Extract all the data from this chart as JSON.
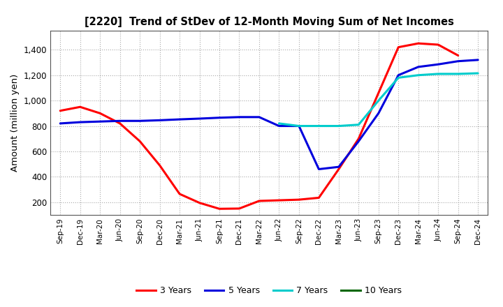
{
  "title": "[2220]  Trend of StDev of 12-Month Moving Sum of Net Incomes",
  "ylabel": "Amount (million yen)",
  "background_color": "#ffffff",
  "plot_bg_color": "#ffffff",
  "grid_color": "#aaaaaa",
  "x_labels": [
    "Sep-19",
    "Dec-19",
    "Mar-20",
    "Jun-20",
    "Sep-20",
    "Dec-20",
    "Mar-21",
    "Jun-21",
    "Sep-21",
    "Dec-21",
    "Mar-22",
    "Jun-22",
    "Sep-22",
    "Dec-22",
    "Mar-23",
    "Jun-23",
    "Sep-23",
    "Dec-23",
    "Mar-24",
    "Jun-24",
    "Sep-24",
    "Dec-24"
  ],
  "series": [
    {
      "label": "3 Years",
      "color": "#ff0000",
      "data": [
        920,
        950,
        900,
        820,
        680,
        490,
        265,
        195,
        148,
        150,
        210,
        215,
        220,
        235,
        460,
        700,
        1060,
        1420,
        1450,
        1440,
        1355,
        null
      ]
    },
    {
      "label": "5 Years",
      "color": "#0000dd",
      "data": [
        820,
        830,
        835,
        840,
        840,
        845,
        852,
        858,
        865,
        870,
        870,
        800,
        800,
        460,
        478,
        680,
        900,
        1200,
        1265,
        1285,
        1310,
        1320
      ]
    },
    {
      "label": "7 Years",
      "color": "#00cccc",
      "data": [
        null,
        null,
        null,
        null,
        null,
        null,
        null,
        null,
        null,
        null,
        null,
        820,
        800,
        800,
        800,
        810,
        1000,
        1180,
        1200,
        1210,
        1210,
        1215
      ]
    },
    {
      "label": "10 Years",
      "color": "#006600",
      "data": [
        null,
        null,
        null,
        null,
        null,
        null,
        null,
        null,
        null,
        null,
        null,
        null,
        null,
        null,
        null,
        null,
        null,
        null,
        null,
        null,
        null,
        null
      ]
    }
  ],
  "ylim": [
    100,
    1550
  ],
  "yticks": [
    200,
    400,
    600,
    800,
    1000,
    1200,
    1400
  ],
  "ytick_labels": [
    "200",
    "400",
    "600",
    "800",
    "1,000",
    "1,200",
    "1,400"
  ],
  "legend_entries": [
    "3 Years",
    "5 Years",
    "7 Years",
    "10 Years"
  ],
  "legend_colors": [
    "#ff0000",
    "#0000dd",
    "#00cccc",
    "#006600"
  ]
}
